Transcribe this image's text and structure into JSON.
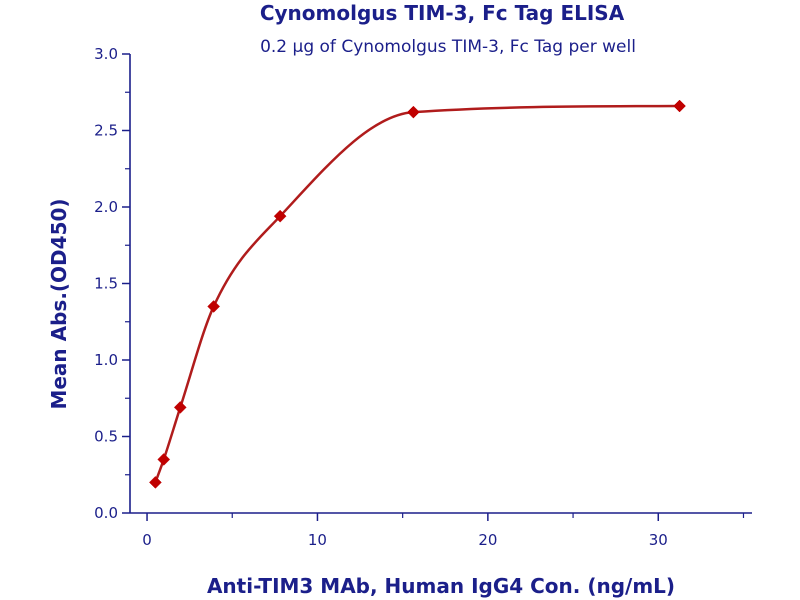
{
  "chart_data": {
    "type": "scatter",
    "title": "Cynomolgus TIM-3, Fc Tag ELISA",
    "subtitle": "0.2 μg of Cynomolgus TIM-3, Fc Tag per well",
    "xlabel": "Anti-TIM3 MAb, Human IgG4 Con. (ng/mL)",
    "ylabel": "Mean Abs.(OD450)",
    "xlim": [
      -1,
      35.5
    ],
    "ylim": [
      0,
      3.0
    ],
    "x_ticks": [
      0,
      10,
      20,
      30
    ],
    "x_tick_labels": [
      "0",
      "10",
      "20",
      "30"
    ],
    "y_ticks": [
      0,
      0.5,
      1.0,
      1.5,
      2.0,
      2.5,
      3.0
    ],
    "y_tick_labels": [
      "0.0",
      "0.5",
      "1.0",
      "1.5",
      "2.0",
      "2.5",
      "3.0"
    ],
    "grid": false,
    "series": [
      {
        "x": [
          0.49,
          0.98,
          1.95,
          3.91,
          7.81,
          15.63,
          31.25
        ],
        "y": [
          0.2,
          0.35,
          0.69,
          1.35,
          1.94,
          2.62,
          2.66
        ],
        "marker": "diamond",
        "fit": "four-parameter logistic"
      }
    ],
    "colors": {
      "marker": "#c00000",
      "curve": "#b01c1c",
      "axis": "#1b1f8a",
      "text": "#1b1f8a"
    }
  }
}
